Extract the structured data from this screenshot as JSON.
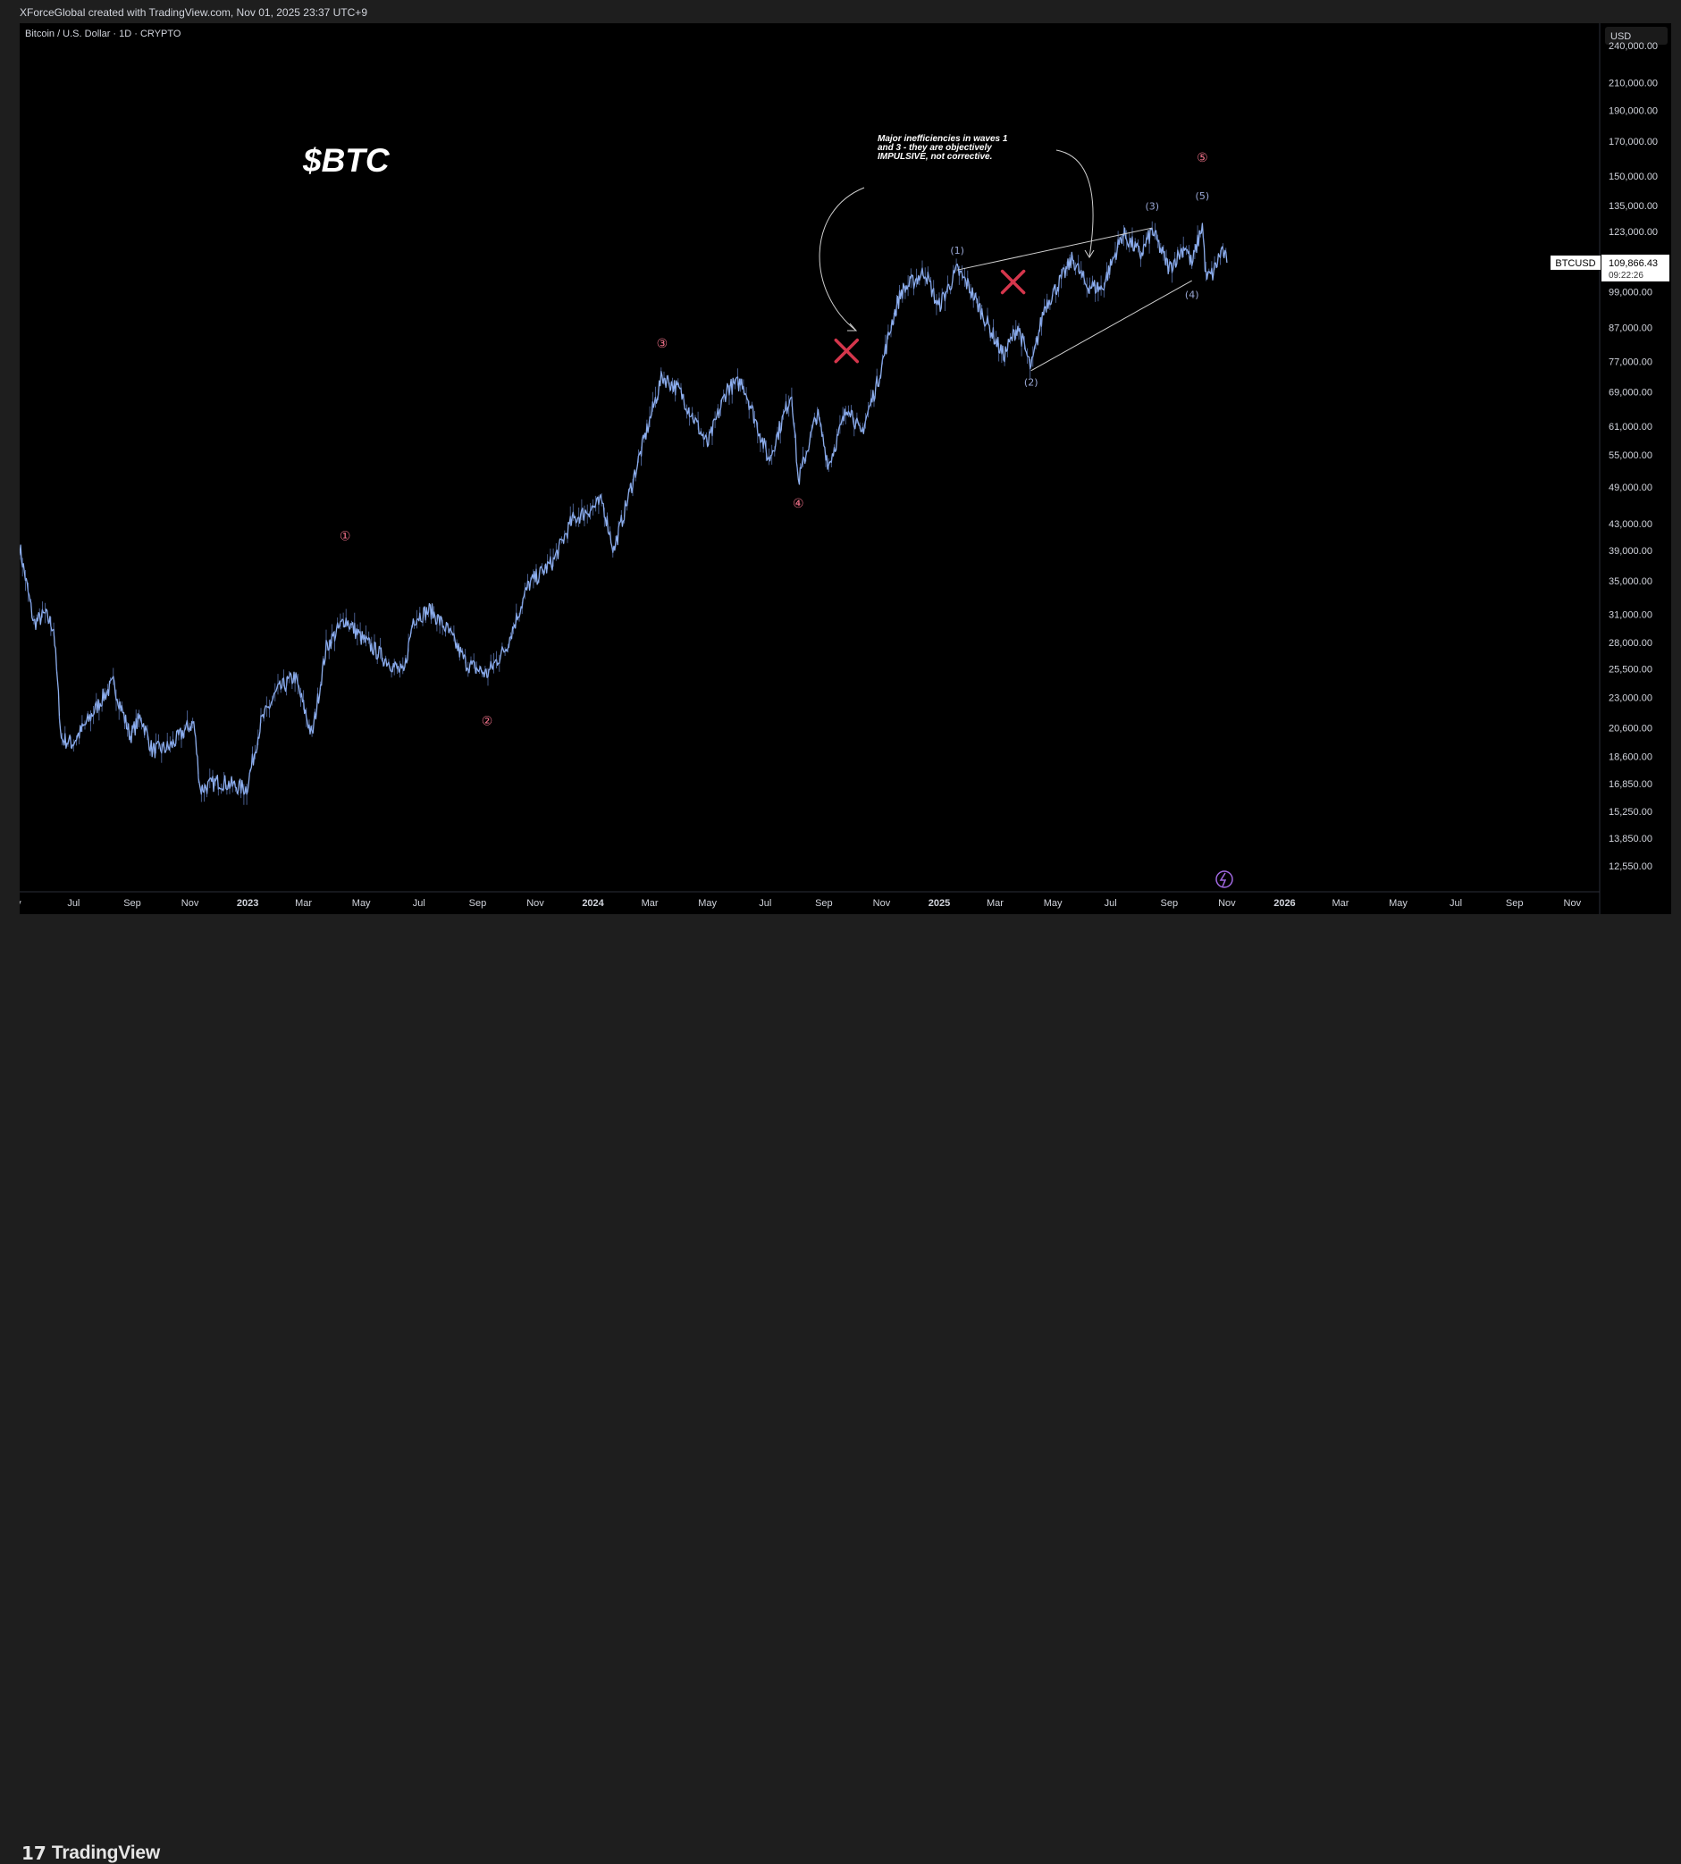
{
  "header": {
    "credit": "XForceGlobal created with TradingView.com, Nov 01, 2025 23:37 UTC+9"
  },
  "chart_data": {
    "type": "line",
    "title": "Bitcoin / U.S. Dollar · 1D · CRYPTO",
    "overlay_title": "$BTC",
    "currency": "USD",
    "scale": "log",
    "ylim": [
      11500,
      260000
    ],
    "xlim": [
      "2022-05-05",
      "2026-11-30"
    ],
    "y_ticks": [
      240000,
      210000,
      190000,
      170000,
      150000,
      135000,
      123000,
      99000,
      87000,
      77000,
      69000,
      61000,
      55000,
      49000,
      43000,
      39000,
      35000,
      31000,
      28000,
      25500,
      23000,
      20600,
      18600,
      16850,
      15250,
      13850,
      12550
    ],
    "y_tick_labels": [
      "240,000.00",
      "210,000.00",
      "190,000.00",
      "170,000.00",
      "150,000.00",
      "135,000.00",
      "123,000.00",
      "99,000.00",
      "87,000.00",
      "77,000.00",
      "69,000.00",
      "61,000.00",
      "55,000.00",
      "49,000.00",
      "43,000.00",
      "39,000.00",
      "35,000.00",
      "31,000.00",
      "28,000.00",
      "25,500.00",
      "23,000.00",
      "20,600.00",
      "18,600.00",
      "16,850.00",
      "15,250.00",
      "13,850.00",
      "12,550.00"
    ],
    "x_ticks": [
      {
        "label": "ay",
        "date": "2022-05-01",
        "bold": false
      },
      {
        "label": "Jul",
        "date": "2022-07-01",
        "bold": false
      },
      {
        "label": "Sep",
        "date": "2022-09-01",
        "bold": false
      },
      {
        "label": "Nov",
        "date": "2022-11-01",
        "bold": false
      },
      {
        "label": "2023",
        "date": "2023-01-01",
        "bold": true
      },
      {
        "label": "Mar",
        "date": "2023-03-01",
        "bold": false
      },
      {
        "label": "May",
        "date": "2023-05-01",
        "bold": false
      },
      {
        "label": "Jul",
        "date": "2023-07-01",
        "bold": false
      },
      {
        "label": "Sep",
        "date": "2023-09-01",
        "bold": false
      },
      {
        "label": "Nov",
        "date": "2023-11-01",
        "bold": false
      },
      {
        "label": "2024",
        "date": "2024-01-01",
        "bold": true
      },
      {
        "label": "Mar",
        "date": "2024-03-01",
        "bold": false
      },
      {
        "label": "May",
        "date": "2024-05-01",
        "bold": false
      },
      {
        "label": "Jul",
        "date": "2024-07-01",
        "bold": false
      },
      {
        "label": "Sep",
        "date": "2024-09-01",
        "bold": false
      },
      {
        "label": "Nov",
        "date": "2024-11-01",
        "bold": false
      },
      {
        "label": "2025",
        "date": "2025-01-01",
        "bold": true
      },
      {
        "label": "Mar",
        "date": "2025-03-01",
        "bold": false
      },
      {
        "label": "May",
        "date": "2025-05-01",
        "bold": false
      },
      {
        "label": "Jul",
        "date": "2025-07-01",
        "bold": false
      },
      {
        "label": "Sep",
        "date": "2025-09-01",
        "bold": false
      },
      {
        "label": "Nov",
        "date": "2025-11-01",
        "bold": false
      },
      {
        "label": "2026",
        "date": "2026-01-01",
        "bold": true
      },
      {
        "label": "Mar",
        "date": "2026-03-01",
        "bold": false
      },
      {
        "label": "May",
        "date": "2026-05-01",
        "bold": false
      },
      {
        "label": "Jul",
        "date": "2026-07-01",
        "bold": false
      },
      {
        "label": "Sep",
        "date": "2026-09-01",
        "bold": false
      },
      {
        "label": "Nov",
        "date": "2026-11-01",
        "bold": false
      }
    ],
    "series": [
      {
        "values": [
          {
            "x": "2022-05-05",
            "y": 39500
          },
          {
            "x": "2022-05-20",
            "y": 30000
          },
          {
            "x": "2022-06-01",
            "y": 31000
          },
          {
            "x": "2022-06-10",
            "y": 29500
          },
          {
            "x": "2022-06-18",
            "y": 19800
          },
          {
            "x": "2022-06-30",
            "y": 19500
          },
          {
            "x": "2022-07-15",
            "y": 21000
          },
          {
            "x": "2022-08-01",
            "y": 23000
          },
          {
            "x": "2022-08-12",
            "y": 24200
          },
          {
            "x": "2022-08-30",
            "y": 20000
          },
          {
            "x": "2022-09-10",
            "y": 21500
          },
          {
            "x": "2022-09-22",
            "y": 19000
          },
          {
            "x": "2022-10-10",
            "y": 19200
          },
          {
            "x": "2022-10-29",
            "y": 20600
          },
          {
            "x": "2022-11-05",
            "y": 21000
          },
          {
            "x": "2022-11-12",
            "y": 16500
          },
          {
            "x": "2022-12-01",
            "y": 17000
          },
          {
            "x": "2022-12-31",
            "y": 16550
          },
          {
            "x": "2023-01-15",
            "y": 21000
          },
          {
            "x": "2023-02-01",
            "y": 23500
          },
          {
            "x": "2023-02-20",
            "y": 24800
          },
          {
            "x": "2023-03-10",
            "y": 20000
          },
          {
            "x": "2023-03-25",
            "y": 27500
          },
          {
            "x": "2023-04-14",
            "y": 30500
          },
          {
            "x": "2023-05-01",
            "y": 28500
          },
          {
            "x": "2023-05-25",
            "y": 26500
          },
          {
            "x": "2023-06-15",
            "y": 25000
          },
          {
            "x": "2023-06-25",
            "y": 30500
          },
          {
            "x": "2023-07-13",
            "y": 31500
          },
          {
            "x": "2023-08-01",
            "y": 29200
          },
          {
            "x": "2023-08-20",
            "y": 26000
          },
          {
            "x": "2023-09-11",
            "y": 25000
          },
          {
            "x": "2023-10-01",
            "y": 27500
          },
          {
            "x": "2023-10-25",
            "y": 34500
          },
          {
            "x": "2023-11-20",
            "y": 37500
          },
          {
            "x": "2023-12-10",
            "y": 43500
          },
          {
            "x": "2024-01-11",
            "y": 46500
          },
          {
            "x": "2024-01-23",
            "y": 39000
          },
          {
            "x": "2024-02-15",
            "y": 52000
          },
          {
            "x": "2024-03-14",
            "y": 73000
          },
          {
            "x": "2024-04-01",
            "y": 69500
          },
          {
            "x": "2024-05-01",
            "y": 57000
          },
          {
            "x": "2024-05-22",
            "y": 70000
          },
          {
            "x": "2024-06-07",
            "y": 71500
          },
          {
            "x": "2024-07-05",
            "y": 54000
          },
          {
            "x": "2024-07-29",
            "y": 69000
          },
          {
            "x": "2024-08-05",
            "y": 50000
          },
          {
            "x": "2024-08-25",
            "y": 64000
          },
          {
            "x": "2024-09-06",
            "y": 53000
          },
          {
            "x": "2024-09-27",
            "y": 66000
          },
          {
            "x": "2024-10-10",
            "y": 59000
          },
          {
            "x": "2024-10-29",
            "y": 72500
          },
          {
            "x": "2024-11-13",
            "y": 90000
          },
          {
            "x": "2024-11-22",
            "y": 99000
          },
          {
            "x": "2024-12-17",
            "y": 106500
          },
          {
            "x": "2024-12-31",
            "y": 93500
          },
          {
            "x": "2025-01-20",
            "y": 107000
          },
          {
            "x": "2025-02-01",
            "y": 101000
          },
          {
            "x": "2025-02-28",
            "y": 84000
          },
          {
            "x": "2025-03-10",
            "y": 78500
          },
          {
            "x": "2025-03-25",
            "y": 87500
          },
          {
            "x": "2025-04-08",
            "y": 75000
          },
          {
            "x": "2025-04-22",
            "y": 93500
          },
          {
            "x": "2025-05-10",
            "y": 103500
          },
          {
            "x": "2025-05-22",
            "y": 111500
          },
          {
            "x": "2025-06-05",
            "y": 101500
          },
          {
            "x": "2025-06-22",
            "y": 100000
          },
          {
            "x": "2025-07-14",
            "y": 122000
          },
          {
            "x": "2025-08-02",
            "y": 113000
          },
          {
            "x": "2025-08-14",
            "y": 123500
          },
          {
            "x": "2025-09-01",
            "y": 107500
          },
          {
            "x": "2025-09-18",
            "y": 117000
          },
          {
            "x": "2025-09-25",
            "y": 109000
          },
          {
            "x": "2025-10-06",
            "y": 126000
          },
          {
            "x": "2025-10-10",
            "y": 104000
          },
          {
            "x": "2025-10-17",
            "y": 105500
          },
          {
            "x": "2025-10-27",
            "y": 115500
          },
          {
            "x": "2025-11-01",
            "y": 109866
          }
        ]
      }
    ],
    "price_label": {
      "symbol": "BTCUSD",
      "price": "109,866.43",
      "countdown": "09:22:26"
    },
    "wave_labels": [
      {
        "text": "①",
        "date": "2023-04-14",
        "y": 40500,
        "color": "#f2728a"
      },
      {
        "text": "②",
        "date": "2023-09-11",
        "y": 20800,
        "color": "#f2728a"
      },
      {
        "text": "③",
        "date": "2024-03-14",
        "y": 81000,
        "color": "#f2728a"
      },
      {
        "text": "④",
        "date": "2024-08-05",
        "y": 45500,
        "color": "#f2728a"
      },
      {
        "text": "⑤",
        "date": "2025-10-06",
        "y": 158000,
        "color": "#f2728a"
      },
      {
        "text": "(1)",
        "date": "2025-01-20",
        "y": 113500,
        "color": "#9aa8d6"
      },
      {
        "text": "(2)",
        "date": "2025-04-08",
        "y": 70600,
        "color": "#9aa8d6"
      },
      {
        "text": "(3)",
        "date": "2025-08-14",
        "y": 133000,
        "color": "#9aa8d6"
      },
      {
        "text": "(4)",
        "date": "2025-09-25",
        "y": 96800,
        "color": "#9aa8d6"
      },
      {
        "text": "(5)",
        "date": "2025-10-06",
        "y": 138000,
        "color": "#9aa8d6"
      }
    ],
    "annotation": {
      "lines": [
        "Major inefficiencies in waves 1",
        "and 3 - they are objectively",
        "IMPULSIVE, not corrective."
      ]
    },
    "colors": {
      "series": "#8fb0ee",
      "x_mark": "#d5364c",
      "text": "#d1d4dc"
    }
  },
  "footer": {
    "brand": "TradingView",
    "brand_icon": "tradingview-logo-icon"
  }
}
